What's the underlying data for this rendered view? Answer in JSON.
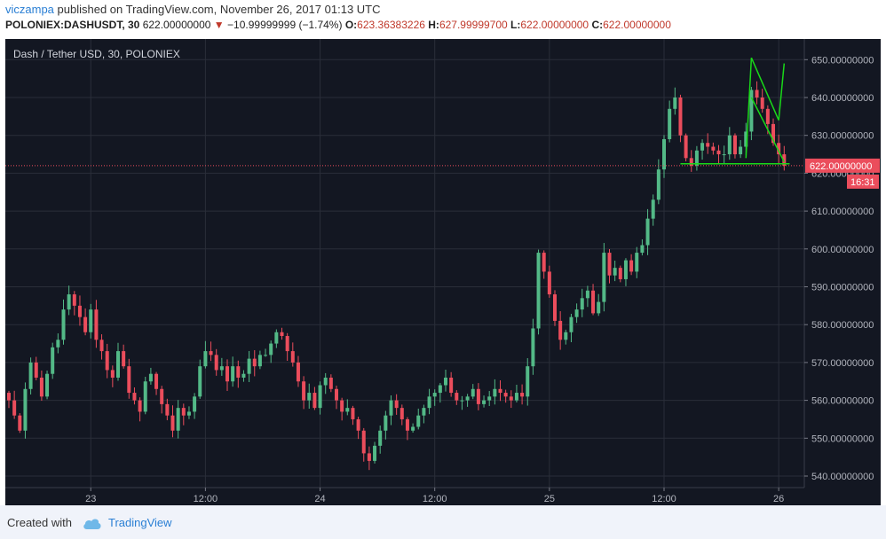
{
  "header": {
    "author": "viczampa",
    "published_text": " published on TradingView.com, November 26, 2017 01:13 UTC",
    "symbol": "POLONIEX:DASHUSDT, 30",
    "last": "622.00000000",
    "change": "−10.99999999 (−1.74%)",
    "o_label": "O:",
    "o_value": "623.36383226",
    "h_label": "H:",
    "h_value": "627.99999700",
    "l_label": "L:",
    "l_value": "622.00000000",
    "c_label": "C:",
    "c_value": "622.00000000"
  },
  "chart_title": "Dash / Tether USD, 30, POLONIEX",
  "last_price_tag": "622.00000000",
  "countdown_tag": "16:31",
  "footer": {
    "created_with": "Created with",
    "brand": "TradingView"
  },
  "colors": {
    "up": "#53b987",
    "down": "#eb4d5c",
    "bg": "#131722",
    "grid": "#2a2e39",
    "drawing": "#19d919"
  },
  "chart_data": {
    "type": "candlestick",
    "title": "Dash / Tether USD, 30, POLONIEX",
    "ylim": [
      535,
      652
    ],
    "ytick_labels": [
      "540.00000000",
      "550.00000000",
      "560.00000000",
      "570.00000000",
      "580.00000000",
      "590.00000000",
      "600.00000000",
      "610.00000000",
      "620.00000000",
      "630.00000000",
      "640.00000000",
      "650.00000000"
    ],
    "ytick_values": [
      540,
      550,
      560,
      570,
      580,
      590,
      600,
      610,
      620,
      630,
      640,
      650
    ],
    "xtick_labels": [
      "23",
      "12:00",
      "24",
      "12:00",
      "25",
      "12:00",
      "26"
    ],
    "xtick_index": [
      15,
      36,
      57,
      78,
      99,
      120,
      141
    ],
    "last_price": 622,
    "closes": [
      560,
      556,
      552,
      563,
      570,
      566,
      561,
      567,
      574,
      576,
      584,
      588,
      585,
      582,
      578,
      584,
      576,
      573,
      568,
      566,
      573,
      569,
      562,
      560,
      557,
      565,
      567,
      563,
      559,
      556,
      552,
      558,
      556,
      557,
      561,
      569,
      573,
      572,
      568,
      569,
      565,
      569,
      566,
      567,
      571,
      569,
      572,
      572,
      575,
      578,
      577,
      573,
      570,
      565,
      560,
      562,
      558,
      564,
      566,
      563,
      560,
      557,
      558,
      555,
      552,
      546,
      544,
      548,
      552,
      556,
      560,
      558,
      555,
      552,
      553,
      556,
      558,
      561,
      562,
      564,
      566,
      562,
      560,
      560,
      561,
      563,
      559,
      560,
      561,
      563,
      562,
      561,
      560,
      562,
      561,
      569,
      579,
      599,
      594,
      588,
      581,
      576,
      578,
      582,
      584,
      587,
      589,
      583,
      586,
      599,
      593,
      595,
      592,
      597,
      594,
      599,
      601,
      608,
      613,
      621,
      629,
      637,
      640,
      630,
      624,
      622,
      626,
      628,
      627,
      626,
      625,
      625,
      630,
      625,
      627,
      631,
      642,
      640,
      637,
      633,
      628,
      625,
      622
    ]
  }
}
